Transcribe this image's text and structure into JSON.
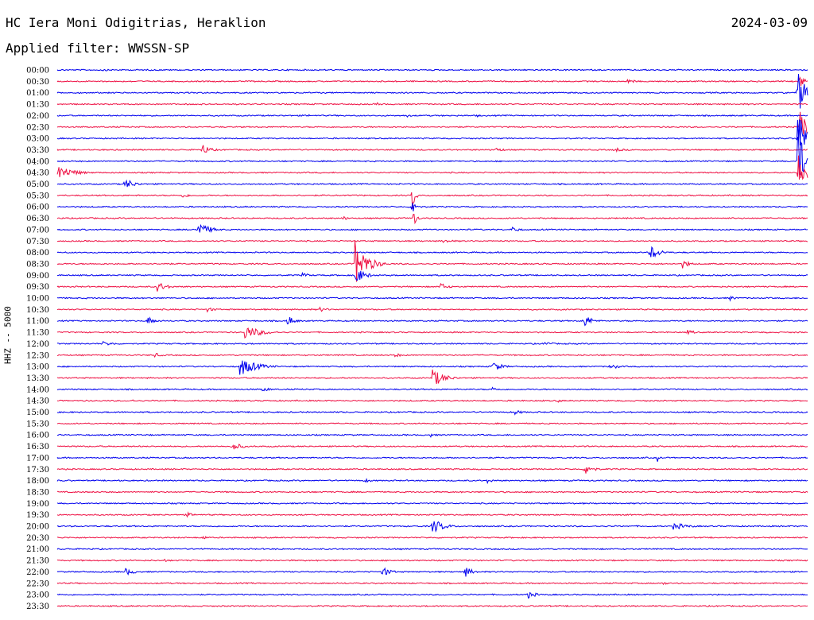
{
  "header": {
    "title": "HC Iera Moni Odigitrias, Heraklion",
    "date": "2024-03-09",
    "filter": "Applied filter: WWSSN-SP",
    "channel_label": "HHZ -- 5000"
  },
  "colors": {
    "even": "#0000ee",
    "odd": "#ee1144"
  },
  "chart_data": {
    "type": "line",
    "title": "HC Iera Moni Odigitrias, Heraklion",
    "ylabel": "HHZ -- 5000",
    "x_range_minutes": [
      0,
      30
    ],
    "tick_labels": [
      "00:00",
      "00:30",
      "01:00",
      "01:30",
      "02:00",
      "02:30",
      "03:00",
      "03:30",
      "04:00",
      "04:30",
      "05:00",
      "05:30",
      "06:00",
      "06:30",
      "07:00",
      "07:30",
      "08:00",
      "08:30",
      "09:00",
      "09:30",
      "10:00",
      "10:30",
      "11:00",
      "11:30",
      "12:00",
      "12:30",
      "13:00",
      "13:30",
      "14:00",
      "14:30",
      "15:00",
      "15:30",
      "16:00",
      "16:30",
      "17:00",
      "17:30",
      "18:00",
      "18:30",
      "19:00",
      "19:30",
      "20:00",
      "20:30",
      "21:00",
      "21:30",
      "22:00",
      "22:30",
      "23:00",
      "23:30"
    ],
    "events": [
      {
        "row": 0,
        "t": 1.8,
        "amp": 2,
        "dur": 0.8
      },
      {
        "row": 1,
        "t": 22.8,
        "amp": 3,
        "dur": 1.0
      },
      {
        "row": 1,
        "t": 29.7,
        "amp": 12,
        "dur": 0.4
      },
      {
        "row": 2,
        "t": 29.6,
        "amp": 30,
        "dur": 0.8
      },
      {
        "row": 3,
        "t": 12.8,
        "amp": 2,
        "dur": 0.6
      },
      {
        "row": 4,
        "t": 10.0,
        "amp": 2,
        "dur": 0.5
      },
      {
        "row": 4,
        "t": 14.0,
        "amp": 2,
        "dur": 0.5
      },
      {
        "row": 4,
        "t": 16.8,
        "amp": 2,
        "dur": 0.5
      },
      {
        "row": 5,
        "t": 29.7,
        "amp": 25,
        "dur": 0.8
      },
      {
        "row": 6,
        "t": 29.6,
        "amp": 40,
        "dur": 0.9
      },
      {
        "row": 7,
        "t": 5.8,
        "amp": 7,
        "dur": 0.9
      },
      {
        "row": 7,
        "t": 17.5,
        "amp": 3,
        "dur": 1.0
      },
      {
        "row": 7,
        "t": 22.3,
        "amp": 3,
        "dur": 1.0
      },
      {
        "row": 8,
        "t": 29.6,
        "amp": 40,
        "dur": 0.9
      },
      {
        "row": 9,
        "t": 0.05,
        "amp": 10,
        "dur": 1.6
      },
      {
        "row": 9,
        "t": 29.6,
        "amp": 30,
        "dur": 0.8
      },
      {
        "row": 10,
        "t": 2.7,
        "amp": 8,
        "dur": 1.0
      },
      {
        "row": 11,
        "t": 5.0,
        "amp": 3,
        "dur": 1.0
      },
      {
        "row": 11,
        "t": 14.2,
        "amp": 20,
        "dur": 0.3
      },
      {
        "row": 12,
        "t": 14.2,
        "amp": 14,
        "dur": 0.4
      },
      {
        "row": 13,
        "t": 14.2,
        "amp": 14,
        "dur": 0.4
      },
      {
        "row": 13,
        "t": 11.4,
        "amp": 3,
        "dur": 0.7
      },
      {
        "row": 14,
        "t": 5.6,
        "amp": 10,
        "dur": 1.3
      },
      {
        "row": 14,
        "t": 18.2,
        "amp": 4,
        "dur": 0.8
      },
      {
        "row": 15,
        "t": 15.4,
        "amp": 3,
        "dur": 1.2
      },
      {
        "row": 16,
        "t": 23.7,
        "amp": 10,
        "dur": 1.0
      },
      {
        "row": 17,
        "t": 11.9,
        "amp": 30,
        "dur": 1.3
      },
      {
        "row": 17,
        "t": 25.0,
        "amp": 6,
        "dur": 0.8
      },
      {
        "row": 17,
        "t": 4.2,
        "amp": 3,
        "dur": 0.6
      },
      {
        "row": 18,
        "t": 11.9,
        "amp": 12,
        "dur": 1.0
      },
      {
        "row": 18,
        "t": 9.8,
        "amp": 3,
        "dur": 1.0
      },
      {
        "row": 19,
        "t": 4.0,
        "amp": 7,
        "dur": 1.0
      },
      {
        "row": 19,
        "t": 15.3,
        "amp": 5,
        "dur": 0.9
      },
      {
        "row": 20,
        "t": 26.9,
        "amp": 3,
        "dur": 0.8
      },
      {
        "row": 21,
        "t": 6.0,
        "amp": 3,
        "dur": 1.0
      },
      {
        "row": 21,
        "t": 10.5,
        "amp": 3,
        "dur": 1.0
      },
      {
        "row": 22,
        "t": 3.6,
        "amp": 6,
        "dur": 0.8
      },
      {
        "row": 22,
        "t": 9.2,
        "amp": 7,
        "dur": 0.8
      },
      {
        "row": 22,
        "t": 21.0,
        "amp": 10,
        "dur": 0.9
      },
      {
        "row": 23,
        "t": 7.5,
        "amp": 9,
        "dur": 1.8
      },
      {
        "row": 23,
        "t": 25.2,
        "amp": 3,
        "dur": 1.0
      },
      {
        "row": 24,
        "t": 1.8,
        "amp": 3,
        "dur": 1.6
      },
      {
        "row": 24,
        "t": 19.5,
        "amp": 3,
        "dur": 1.0
      },
      {
        "row": 25,
        "t": 3.9,
        "amp": 3,
        "dur": 0.8
      },
      {
        "row": 25,
        "t": 13.5,
        "amp": 3,
        "dur": 0.8
      },
      {
        "row": 26,
        "t": 7.3,
        "amp": 12,
        "dur": 1.8
      },
      {
        "row": 26,
        "t": 17.4,
        "amp": 7,
        "dur": 1.0
      },
      {
        "row": 26,
        "t": 22.1,
        "amp": 5,
        "dur": 0.8
      },
      {
        "row": 27,
        "t": 15.0,
        "amp": 12,
        "dur": 1.3
      },
      {
        "row": 28,
        "t": 8.2,
        "amp": 3,
        "dur": 1.0
      },
      {
        "row": 28,
        "t": 17.4,
        "amp": 3,
        "dur": 0.8
      },
      {
        "row": 29,
        "t": 2.9,
        "amp": 2,
        "dur": 0.8
      },
      {
        "row": 29,
        "t": 20.0,
        "amp": 2,
        "dur": 0.8
      },
      {
        "row": 30,
        "t": 18.3,
        "amp": 3,
        "dur": 1.0
      },
      {
        "row": 32,
        "t": 14.9,
        "amp": 3,
        "dur": 0.6
      },
      {
        "row": 33,
        "t": 7.0,
        "amp": 6,
        "dur": 1.0
      },
      {
        "row": 34,
        "t": 24.0,
        "amp": 5,
        "dur": 0.3
      },
      {
        "row": 35,
        "t": 21.1,
        "amp": 8,
        "dur": 0.9
      },
      {
        "row": 36,
        "t": 12.3,
        "amp": 3,
        "dur": 0.8
      },
      {
        "row": 36,
        "t": 17.2,
        "amp": 3,
        "dur": 0.8
      },
      {
        "row": 39,
        "t": 5.2,
        "amp": 3,
        "dur": 0.8
      },
      {
        "row": 40,
        "t": 15.0,
        "amp": 10,
        "dur": 1.2
      },
      {
        "row": 40,
        "t": 24.6,
        "amp": 5,
        "dur": 1.6
      },
      {
        "row": 41,
        "t": 5.8,
        "amp": 3,
        "dur": 0.6
      },
      {
        "row": 43,
        "t": 4.3,
        "amp": 2,
        "dur": 0.5
      },
      {
        "row": 44,
        "t": 2.7,
        "amp": 5,
        "dur": 1.0
      },
      {
        "row": 44,
        "t": 13.0,
        "amp": 7,
        "dur": 0.9
      },
      {
        "row": 44,
        "t": 16.3,
        "amp": 7,
        "dur": 0.9
      },
      {
        "row": 45,
        "t": 24.2,
        "amp": 3,
        "dur": 0.5
      },
      {
        "row": 46,
        "t": 18.8,
        "amp": 5,
        "dur": 1.0
      }
    ]
  }
}
